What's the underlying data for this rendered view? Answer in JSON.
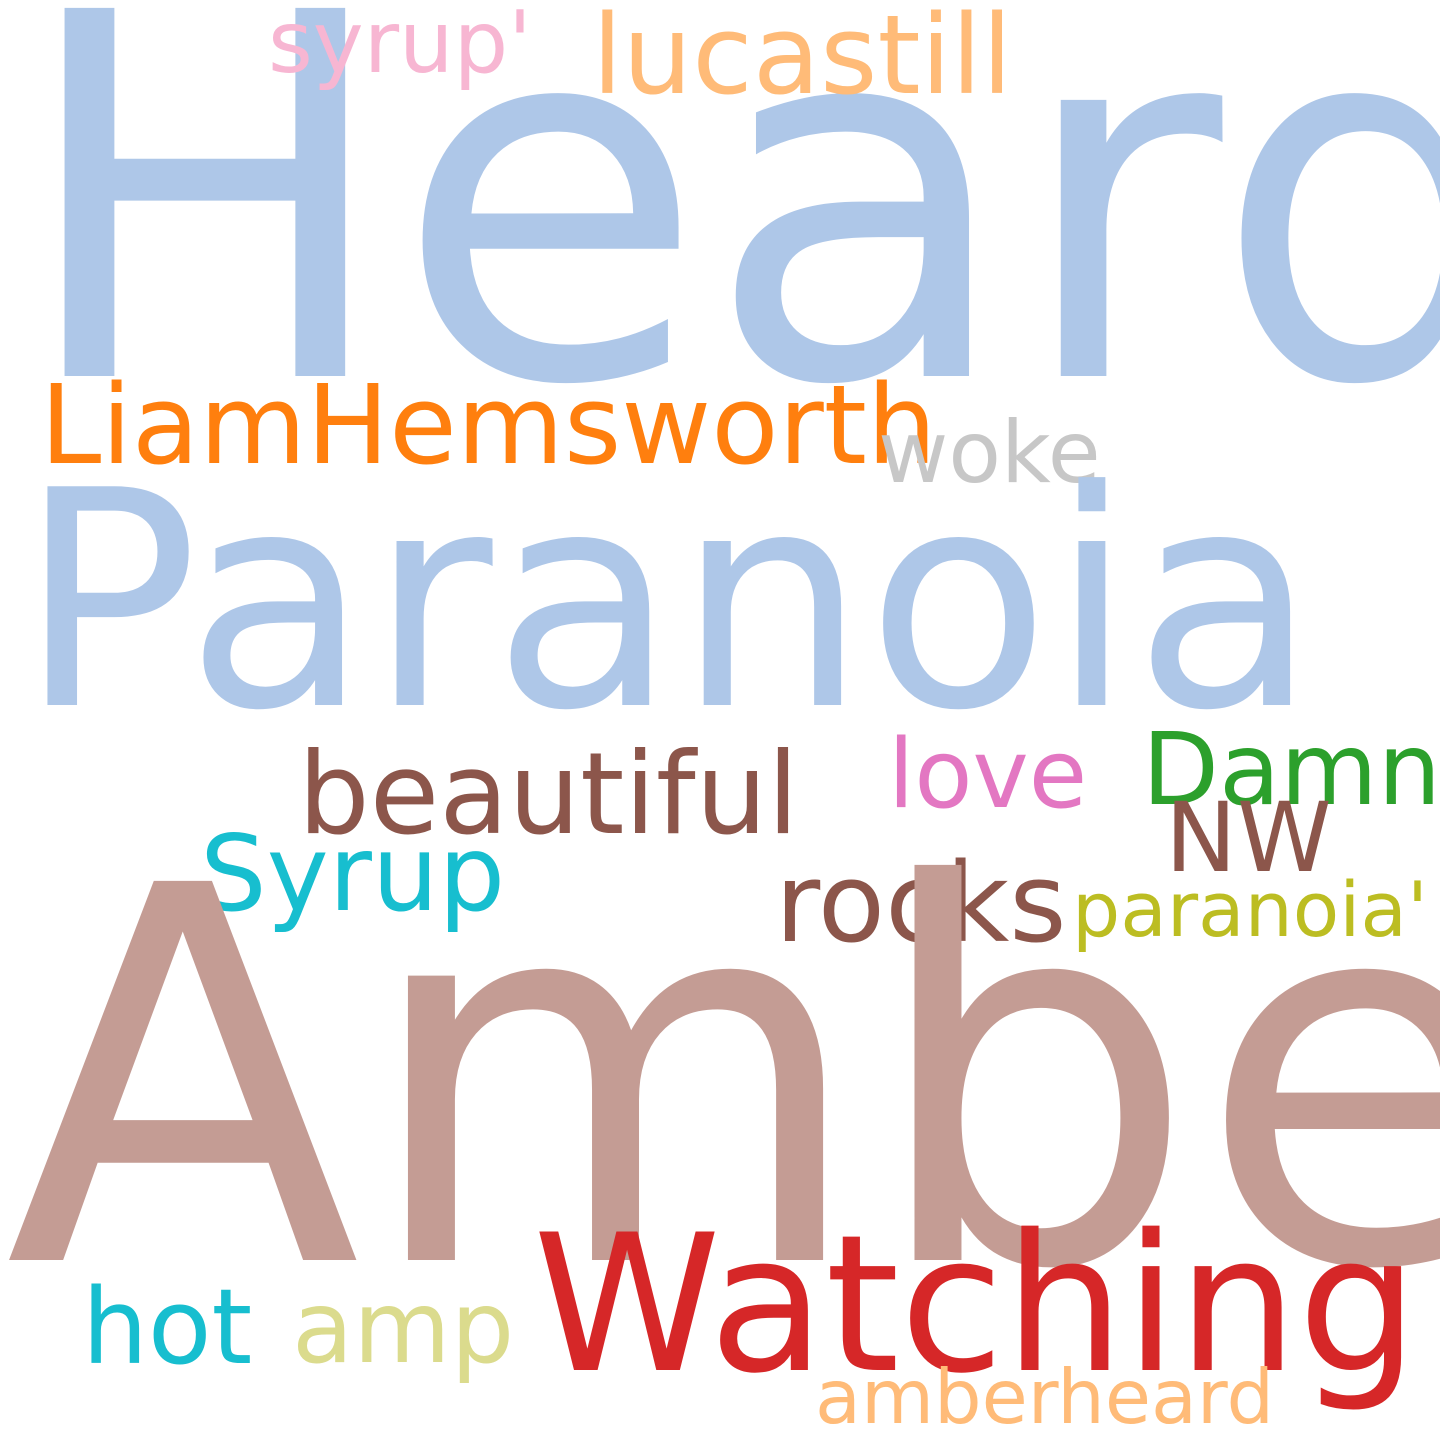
{
  "words": [
    {
      "text": "Heard",
      "color": "#aec7e8"
    },
    {
      "text": "syrup'",
      "color": "#f7b6d2"
    },
    {
      "text": "lucastill",
      "color": "#ffbb78"
    },
    {
      "text": "LiamHemsworth",
      "color": "#ff7f0e"
    },
    {
      "text": "woke",
      "color": "#c7c7c7"
    },
    {
      "text": "Paranoia",
      "color": "#aec7e8"
    },
    {
      "text": "beautiful",
      "color": "#8c564b"
    },
    {
      "text": "love",
      "color": "#e377c2"
    },
    {
      "text": "Damn",
      "color": "#2ca02c"
    },
    {
      "text": "NW",
      "color": "#8c564b"
    },
    {
      "text": "Syrup",
      "color": "#17becf"
    },
    {
      "text": "rocks",
      "color": "#8c564b"
    },
    {
      "text": "paranoia'",
      "color": "#bcbd22"
    },
    {
      "text": "Amber",
      "color": "#c49c94"
    },
    {
      "text": "Watching",
      "color": "#d62728"
    },
    {
      "text": "hot",
      "color": "#17becf"
    },
    {
      "text": "amp",
      "color": "#dbdb8d"
    },
    {
      "text": "amberheard",
      "color": "#ffbb78"
    }
  ]
}
